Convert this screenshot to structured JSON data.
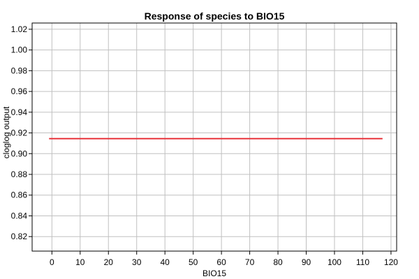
{
  "chart_data": {
    "type": "line",
    "title": "Response of species to BIO15",
    "xlabel": "BIO15",
    "ylabel": "cloglog output",
    "xlim": [
      -7,
      122
    ],
    "ylim": [
      0.806,
      1.026
    ],
    "xticks": [
      0,
      10,
      20,
      30,
      40,
      50,
      60,
      70,
      80,
      90,
      100,
      110,
      120
    ],
    "yticks": [
      0.82,
      0.84,
      0.86,
      0.88,
      0.9,
      0.92,
      0.94,
      0.96,
      0.98,
      1.0,
      1.02
    ],
    "grid": true,
    "series": [
      {
        "color": "#e8333b",
        "x": [
          -1,
          117
        ],
        "y": [
          0.9145,
          0.9145
        ]
      }
    ]
  }
}
